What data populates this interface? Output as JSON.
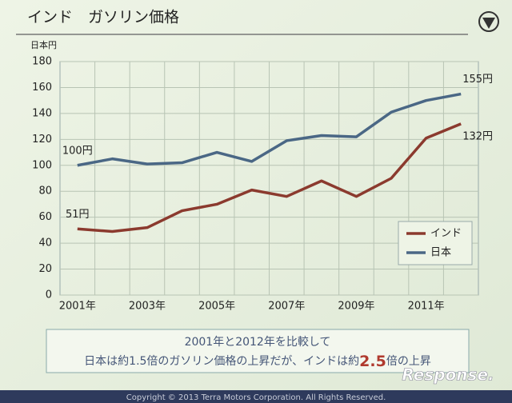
{
  "chart_data": {
    "type": "line",
    "title": "インド　ガソリン価格",
    "y_axis_label": "日本円",
    "categories": [
      "2001年",
      null,
      "2003年",
      null,
      "2005年",
      null,
      "2007年",
      null,
      "2009年",
      null,
      "2011年",
      null
    ],
    "series": [
      {
        "name": "インド",
        "color": "#8b3a2e",
        "values": [
          51,
          49,
          52,
          65,
          70,
          81,
          76,
          88,
          76,
          90,
          121,
          132
        ],
        "value_labels": [
          "51円",
          null,
          null,
          null,
          null,
          null,
          null,
          null,
          null,
          null,
          null,
          "132円"
        ]
      },
      {
        "name": "日本",
        "color": "#4a6785",
        "values": [
          100,
          105,
          101,
          102,
          110,
          103,
          119,
          123,
          122,
          141,
          150,
          155
        ],
        "value_labels": [
          "100円",
          null,
          null,
          null,
          null,
          null,
          null,
          null,
          null,
          null,
          null,
          "155円"
        ]
      }
    ],
    "ylim": [
      0,
      180
    ],
    "yticks": [
      0,
      20,
      40,
      60,
      80,
      100,
      120,
      140,
      160,
      180
    ],
    "grid": true,
    "legend": "bottom-right"
  },
  "summary": {
    "line1": "2001年と2012年を比較して",
    "line2_parts": [
      "日本は約1.5倍のガソリン価格の上昇だが、インドは約",
      "2.5",
      "倍の上昇"
    ]
  },
  "footer": "Copyright © 2013 Terra Motors Corporation. All Rights Reserved.",
  "watermark": "Response."
}
